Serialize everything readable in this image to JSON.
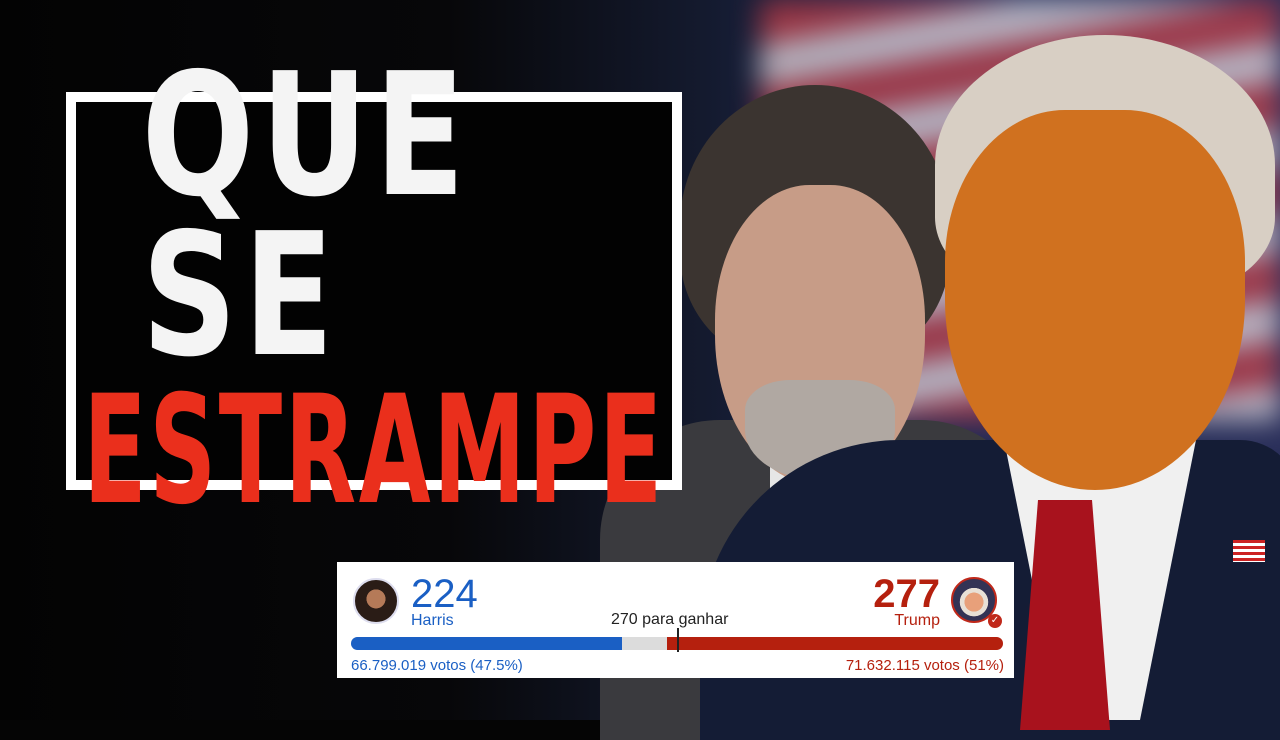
{
  "headline": {
    "line1": "QUE SE",
    "line2": "ESTRAMPE"
  },
  "colors": {
    "harris_blue": "#1a5fc4",
    "trump_red": "#b5200e",
    "headline_red": "#ea2f1c"
  },
  "results": {
    "goal_label": "270 para ganhar",
    "goal": 270,
    "harris": {
      "name": "Harris",
      "electoral_votes": "224",
      "ev_value": 224,
      "votes_label": "66.799.019 votos (47.5%)"
    },
    "trump": {
      "name": "Trump",
      "electoral_votes": "277",
      "ev_value": 277,
      "votes_label": "71.632.115 votos (51%)",
      "winner_icon": "check-icon"
    }
  }
}
